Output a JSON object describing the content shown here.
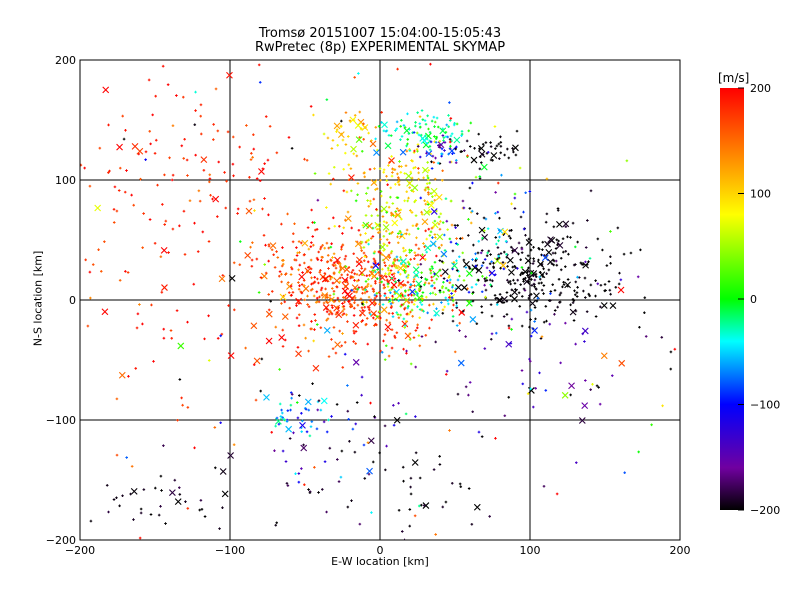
{
  "chart_data": {
    "type": "scatter",
    "title": "Tromsø 20151007 15:04:00-15:05:43",
    "subtitle": "RwPretec (8p) EXPERIMENTAL SKYMAP",
    "xlabel": "E-W location [km]",
    "ylabel": "N-S location [km]",
    "xlim": [
      -200,
      200
    ],
    "ylim": [
      -200,
      200
    ],
    "xticks": [
      -200,
      -100,
      0,
      100,
      200
    ],
    "yticks": [
      -200,
      -100,
      0,
      100,
      200
    ],
    "xtick_labels": [
      "−200",
      "−100",
      "0",
      "100",
      "200"
    ],
    "ytick_labels": [
      "−200",
      "−100",
      "0",
      "100",
      "200"
    ],
    "grid": true,
    "colorbar": {
      "label": "[m/s]",
      "range": [
        -200,
        200
      ],
      "ticks": [
        200,
        100,
        0,
        -100,
        -200
      ],
      "tick_labels": [
        "200",
        "100",
        "0",
        "−100",
        "−200"
      ],
      "colormap": "rainbow"
    },
    "markers": {
      "small": "+",
      "large": "×"
    },
    "clusters": [
      {
        "x": -15,
        "y": 5,
        "sx": 28,
        "sy": 22,
        "n": 380,
        "v": 175,
        "sv": 25
      },
      {
        "x": -45,
        "y": 25,
        "sx": 22,
        "sy": 18,
        "n": 120,
        "v": 170,
        "sv": 25
      },
      {
        "x": 10,
        "y": 40,
        "sx": 22,
        "sy": 30,
        "n": 200,
        "v": 95,
        "sv": 45
      },
      {
        "x": 25,
        "y": 10,
        "sx": 18,
        "sy": 15,
        "n": 150,
        "v": -5,
        "sv": 50
      },
      {
        "x": 15,
        "y": 95,
        "sx": 22,
        "sy": 22,
        "n": 160,
        "v": 85,
        "sv": 35
      },
      {
        "x": 30,
        "y": 140,
        "sx": 15,
        "sy": 8,
        "n": 90,
        "v": -20,
        "sv": 20
      },
      {
        "x": 40,
        "y": 125,
        "sx": 8,
        "sy": 6,
        "n": 35,
        "v": -140,
        "sv": 40
      },
      {
        "x": -20,
        "y": 140,
        "sx": 10,
        "sy": 8,
        "n": 35,
        "v": 100,
        "sv": 30
      },
      {
        "x": 75,
        "y": 125,
        "sx": 12,
        "sy": 8,
        "n": 40,
        "v": -200,
        "sv": 5
      },
      {
        "x": 105,
        "y": 20,
        "sx": 30,
        "sy": 22,
        "n": 320,
        "v": -200,
        "sv": 6
      },
      {
        "x": 65,
        "y": 40,
        "sx": 25,
        "sy": 30,
        "n": 80,
        "v": -80,
        "sv": 50
      },
      {
        "x": 95,
        "y": -45,
        "sx": 50,
        "sy": 30,
        "n": 60,
        "v": -170,
        "sv": 35
      },
      {
        "x": -55,
        "y": -100,
        "sx": 10,
        "sy": 10,
        "n": 40,
        "v": -60,
        "sv": 30
      },
      {
        "x": -30,
        "y": -110,
        "sx": 25,
        "sy": 25,
        "n": 40,
        "v": -150,
        "sv": 50
      },
      {
        "x": 10,
        "y": -160,
        "sx": 40,
        "sy": 30,
        "n": 60,
        "v": -195,
        "sv": 10
      },
      {
        "x": -120,
        "y": 110,
        "sx": 55,
        "sy": 45,
        "n": 140,
        "v": 185,
        "sv": 20
      },
      {
        "x": -120,
        "y": -10,
        "sx": 50,
        "sy": 70,
        "n": 80,
        "v": 180,
        "sv": 25
      },
      {
        "x": -150,
        "y": -170,
        "sx": 30,
        "sy": 20,
        "n": 40,
        "v": -195,
        "sv": 10
      },
      {
        "x": 0,
        "y": 0,
        "sx": 120,
        "sy": 120,
        "n": 160,
        "v": 40,
        "sv": 180
      }
    ],
    "large_marker_fraction": 0.1
  }
}
